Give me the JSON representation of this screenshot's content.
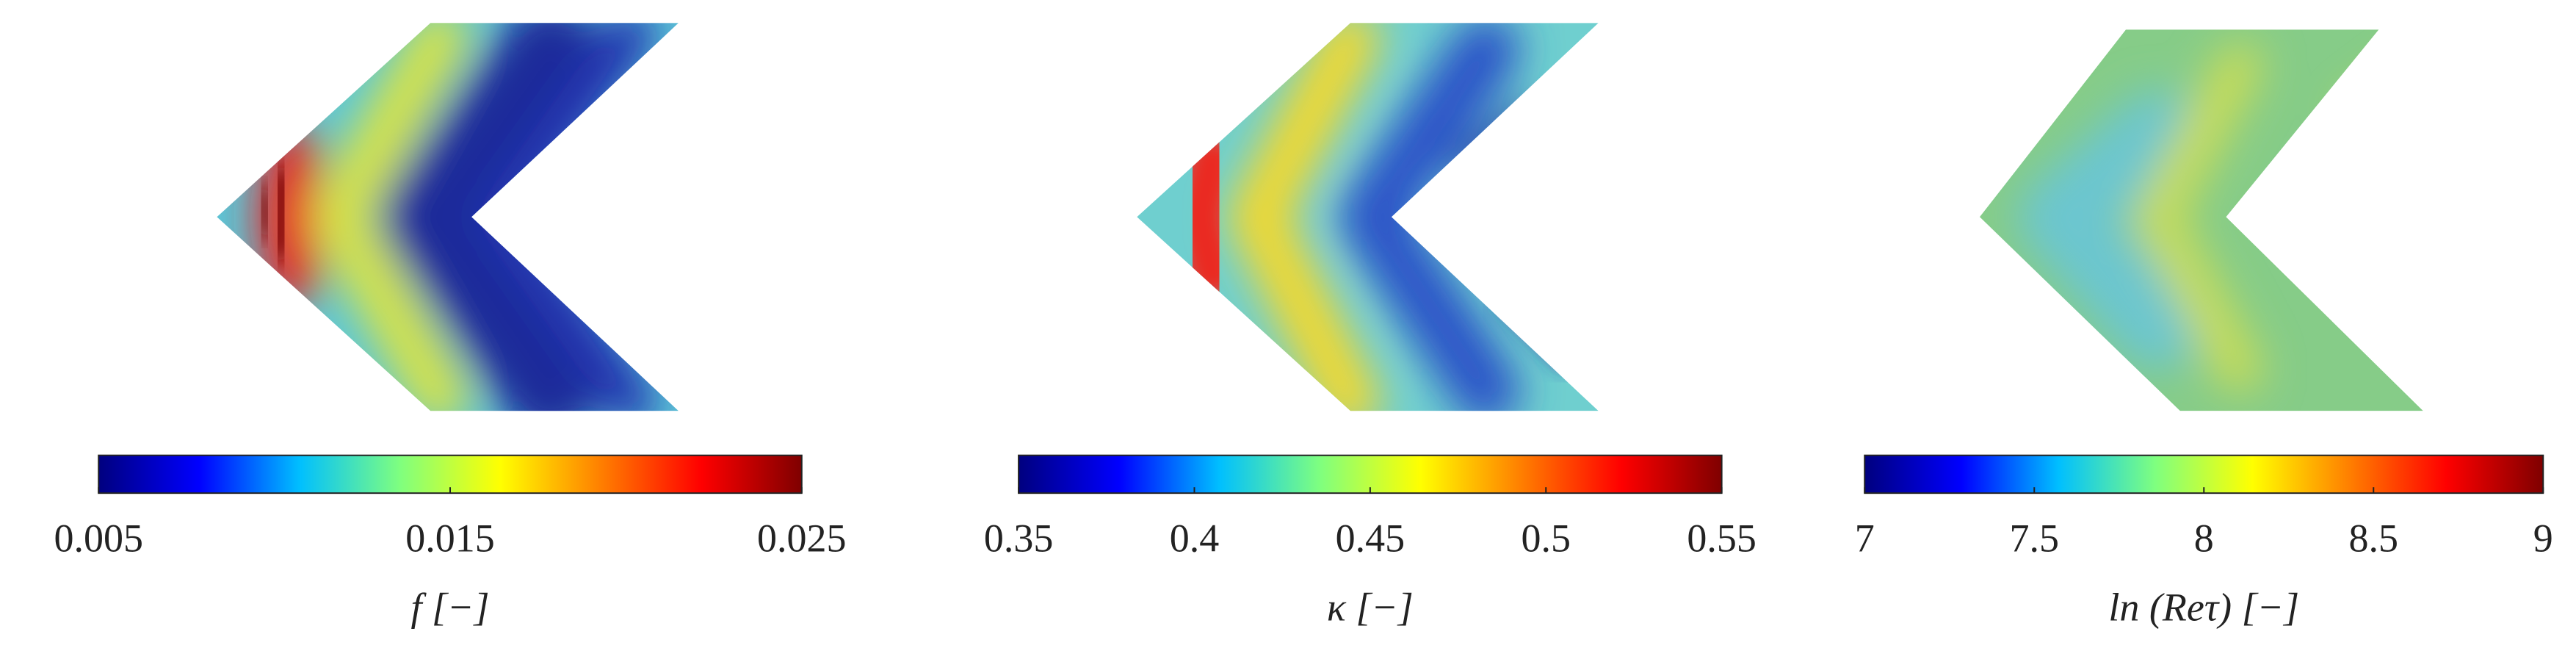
{
  "chart_data": [
    {
      "type": "heatmap",
      "xlabel": "f [−]",
      "clim": [
        0.005,
        0.025
      ],
      "cticks": [
        0.005,
        0.015,
        0.025
      ],
      "colormap": [
        "#00007f",
        "#0000ff",
        "#00bfff",
        "#7fff7f",
        "#ffff00",
        "#ff7f00",
        "#ff0000",
        "#7f0000"
      ]
    },
    {
      "type": "heatmap",
      "xlabel": "κ [−]",
      "clim": [
        0.35,
        0.55
      ],
      "cticks": [
        0.35,
        0.4,
        0.45,
        0.5,
        0.55
      ],
      "colormap": [
        "#00007f",
        "#0000ff",
        "#00bfff",
        "#7fff7f",
        "#ffff00",
        "#ff7f00",
        "#ff0000",
        "#7f0000"
      ]
    },
    {
      "type": "heatmap",
      "xlabel": "ln (Reτ) [−]",
      "clim": [
        7,
        9
      ],
      "cticks": [
        7,
        7.5,
        8,
        8.5,
        9
      ],
      "colormap": [
        "#00007f",
        "#0000ff",
        "#00bfff",
        "#7fff7f",
        "#ffff00",
        "#ff7f00",
        "#ff0000",
        "#7f0000"
      ]
    }
  ]
}
